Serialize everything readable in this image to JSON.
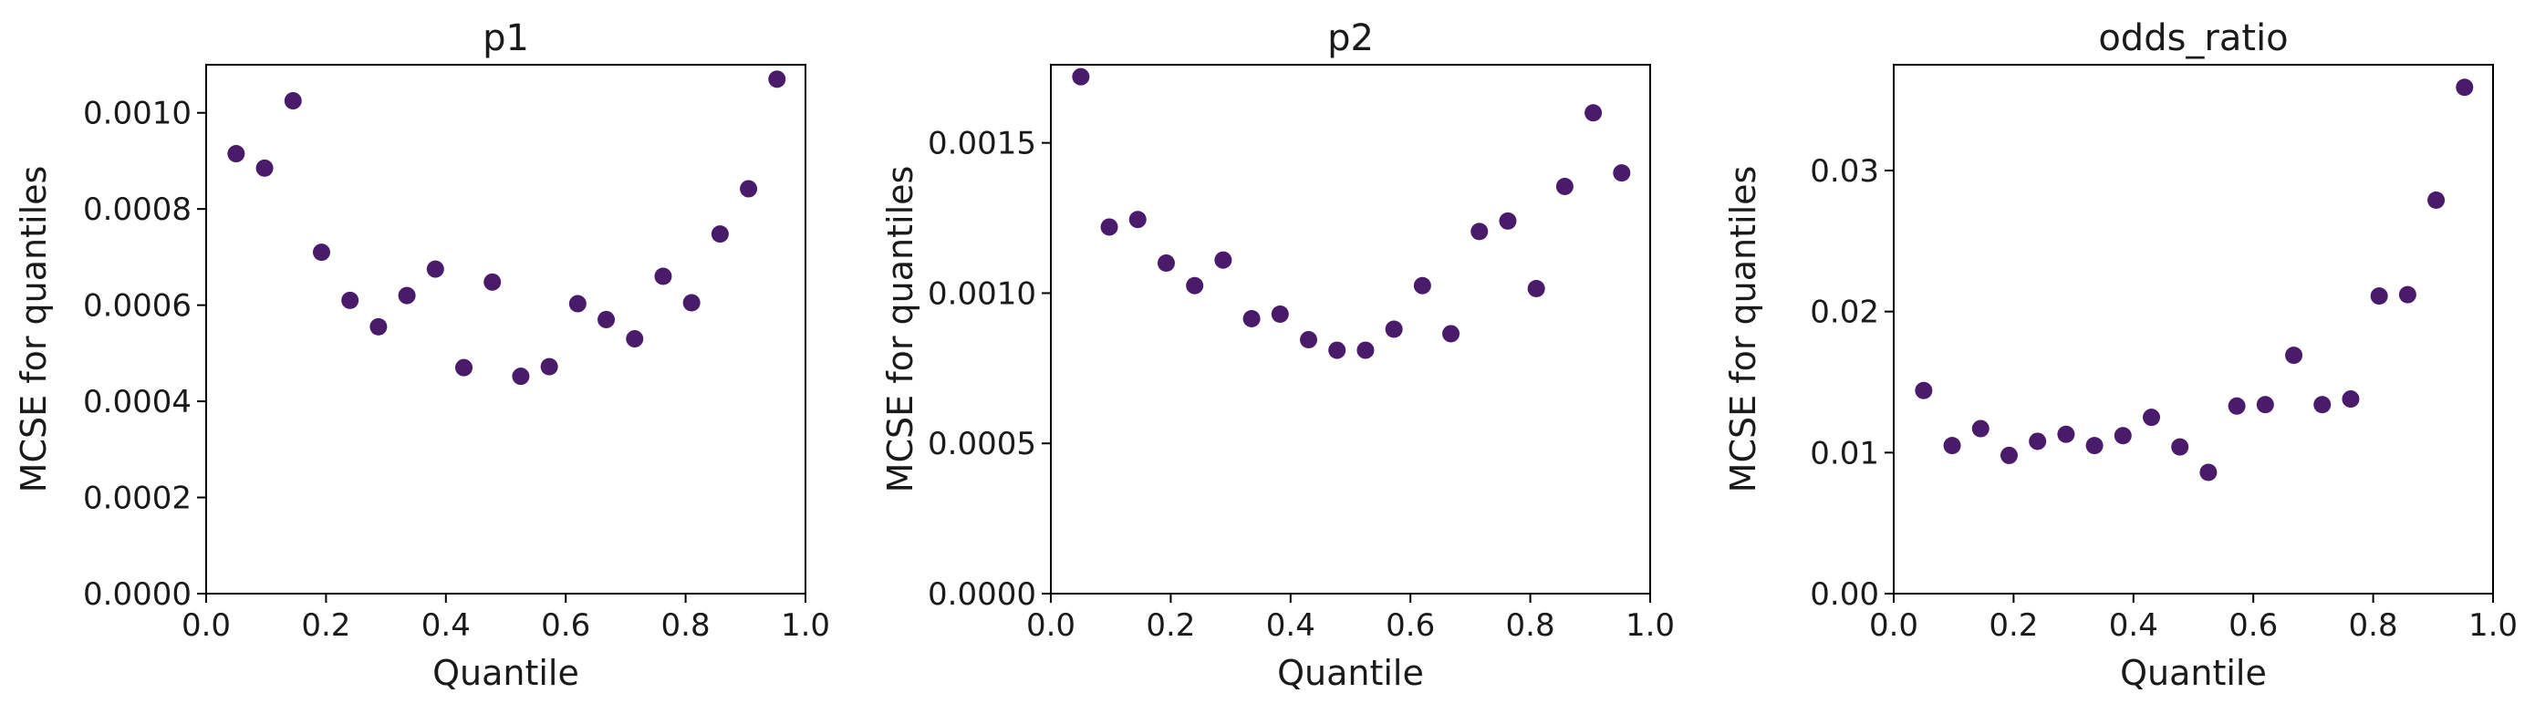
{
  "chart_data": [
    {
      "type": "scatter",
      "title": "p1",
      "xlabel": "Quantile",
      "ylabel": "MCSE for quantiles",
      "xlim": [
        0.0,
        1.0
      ],
      "ylim": [
        0.0,
        0.0011
      ],
      "xticks": [
        "0.0",
        "0.2",
        "0.4",
        "0.6",
        "0.8",
        "1.0"
      ],
      "yticks": [
        "0.0000",
        "0.0002",
        "0.0004",
        "0.0006",
        "0.0008",
        "0.0010"
      ],
      "grid": false,
      "marker_color": "#4a1a6b",
      "x": [
        0.05,
        0.0975,
        0.145,
        0.1925,
        0.24,
        0.2875,
        0.335,
        0.3825,
        0.43,
        0.4775,
        0.525,
        0.5725,
        0.62,
        0.6675,
        0.715,
        0.7625,
        0.81,
        0.8575,
        0.905,
        0.9525
      ],
      "y": [
        0.000915,
        0.000885,
        0.001025,
        0.00071,
        0.00061,
        0.000555,
        0.00062,
        0.000675,
        0.00047,
        0.000648,
        0.000452,
        0.000472,
        0.000603,
        0.00057,
        0.00053,
        0.00066,
        0.000605,
        0.000748,
        0.000842,
        0.00107
      ]
    },
    {
      "type": "scatter",
      "title": "p2",
      "xlabel": "Quantile",
      "ylabel": "MCSE for quantiles",
      "xlim": [
        0.0,
        1.0
      ],
      "ylim": [
        0.0,
        0.00176
      ],
      "xticks": [
        "0.0",
        "0.2",
        "0.4",
        "0.6",
        "0.8",
        "1.0"
      ],
      "yticks": [
        "0.0000",
        "0.0005",
        "0.0010",
        "0.0015"
      ],
      "grid": false,
      "marker_color": "#4a1a6b",
      "x": [
        0.05,
        0.0975,
        0.145,
        0.1925,
        0.24,
        0.2875,
        0.335,
        0.3825,
        0.43,
        0.4775,
        0.525,
        0.5725,
        0.62,
        0.6675,
        0.715,
        0.7625,
        0.81,
        0.8575,
        0.905,
        0.9525
      ],
      "y": [
        0.00172,
        0.00122,
        0.001245,
        0.0011,
        0.001025,
        0.00111,
        0.000915,
        0.00093,
        0.000845,
        0.00081,
        0.00081,
        0.00088,
        0.001025,
        0.000865,
        0.001205,
        0.00124,
        0.001015,
        0.001355,
        0.0016,
        0.0014
      ]
    },
    {
      "type": "scatter",
      "title": "odds_ratio",
      "xlabel": "Quantile",
      "ylabel": "MCSE for quantiles",
      "xlim": [
        0.0,
        1.0
      ],
      "ylim": [
        0.0,
        0.0375
      ],
      "xticks": [
        "0.0",
        "0.2",
        "0.4",
        "0.6",
        "0.8",
        "1.0"
      ],
      "yticks": [
        "0.00",
        "0.01",
        "0.02",
        "0.03"
      ],
      "grid": false,
      "marker_color": "#4a1a6b",
      "x": [
        0.05,
        0.0975,
        0.145,
        0.1925,
        0.24,
        0.2875,
        0.335,
        0.3825,
        0.43,
        0.4775,
        0.525,
        0.5725,
        0.62,
        0.6675,
        0.715,
        0.7625,
        0.81,
        0.8575,
        0.905,
        0.9525
      ],
      "y": [
        0.0144,
        0.0105,
        0.0117,
        0.0098,
        0.0108,
        0.0113,
        0.0105,
        0.0112,
        0.0125,
        0.0104,
        0.0086,
        0.0133,
        0.0134,
        0.0169,
        0.0134,
        0.0138,
        0.0211,
        0.0212,
        0.0279,
        0.0359
      ]
    }
  ]
}
